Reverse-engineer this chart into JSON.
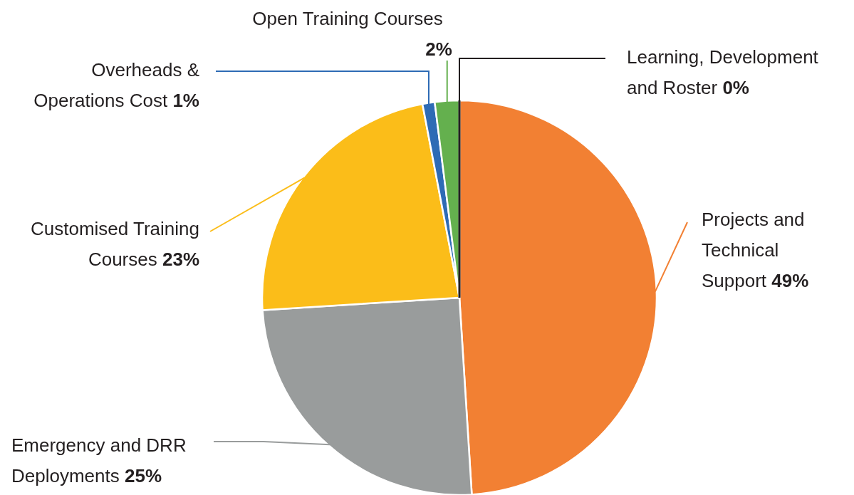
{
  "chart_data": {
    "type": "pie",
    "categories": [
      "Projects and Technical Support",
      "Emergency and DRR Deployments",
      "Customised Training Courses",
      "Overheads & Operations Cost",
      "Open Training Courses",
      "Learning, Development and Roster"
    ],
    "values": [
      49,
      25,
      23,
      1,
      2,
      0
    ],
    "value_labels": [
      "49%",
      "25%",
      "23%",
      "1%",
      "2%",
      "0%"
    ],
    "colors": [
      "#f28033",
      "#999c9c",
      "#fbbd19",
      "#2e6bb5",
      "#64b04e",
      "#231f20"
    ]
  }
}
